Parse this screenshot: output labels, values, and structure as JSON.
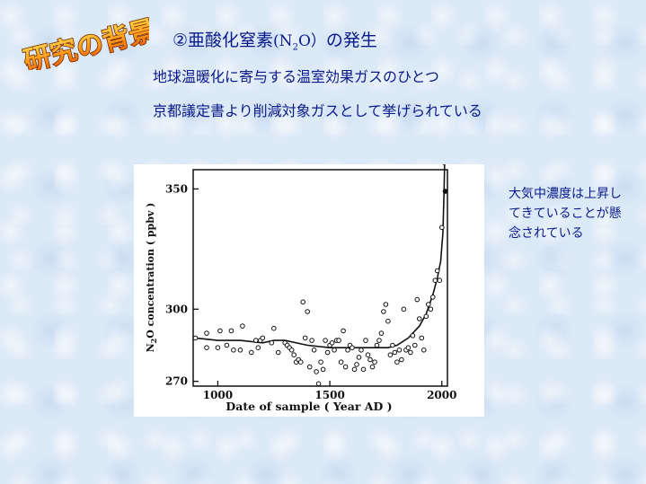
{
  "logo_text": "研究の背景",
  "title": {
    "prefix": "②亜酸化窒素",
    "formula_open": "(N",
    "formula_sub": "2",
    "formula_close": "O）",
    "suffix": "の発生"
  },
  "lines": [
    "地球温暖化に寄与する温室効果ガスのひとつ",
    "京都議定書より削減対象ガスとして挙げられている"
  ],
  "side_note": "大気中濃度は上昇してきていることが懸念されている",
  "chart_data": {
    "type": "scatter",
    "xlabel": "Date of sample ( Year AD )",
    "ylabel_main": "N",
    "ylabel_sub": "2",
    "ylabel_rest": "O concentration ( ppbv )",
    "xlim": [
      890,
      2025
    ],
    "ylim": [
      268,
      358
    ],
    "x_ticks": [
      1000,
      1500,
      2000
    ],
    "y_ticks": [
      270,
      300,
      350
    ],
    "points": [
      [
        900,
        288
      ],
      [
        950,
        290
      ],
      [
        950,
        284
      ],
      [
        1000,
        284
      ],
      [
        1010,
        291
      ],
      [
        1040,
        285
      ],
      [
        1060,
        291
      ],
      [
        1070,
        283
      ],
      [
        1100,
        283
      ],
      [
        1110,
        293
      ],
      [
        1150,
        282
      ],
      [
        1170,
        287
      ],
      [
        1180,
        284
      ],
      [
        1190,
        287
      ],
      [
        1200,
        288
      ],
      [
        1240,
        286
      ],
      [
        1250,
        292
      ],
      [
        1270,
        282
      ],
      [
        1300,
        286
      ],
      [
        1310,
        285
      ],
      [
        1320,
        284
      ],
      [
        1330,
        283
      ],
      [
        1340,
        281
      ],
      [
        1350,
        278
      ],
      [
        1360,
        279
      ],
      [
        1370,
        278
      ],
      [
        1380,
        303
      ],
      [
        1390,
        288
      ],
      [
        1400,
        299
      ],
      [
        1410,
        276
      ],
      [
        1420,
        287
      ],
      [
        1430,
        283
      ],
      [
        1440,
        274
      ],
      [
        1450,
        269
      ],
      [
        1460,
        278
      ],
      [
        1470,
        275
      ],
      [
        1480,
        287
      ],
      [
        1490,
        282
      ],
      [
        1500,
        285
      ],
      [
        1510,
        286
      ],
      [
        1520,
        283
      ],
      [
        1530,
        287
      ],
      [
        1540,
        287
      ],
      [
        1550,
        278
      ],
      [
        1560,
        291
      ],
      [
        1570,
        276
      ],
      [
        1580,
        283
      ],
      [
        1590,
        285
      ],
      [
        1600,
        284
      ],
      [
        1610,
        275
      ],
      [
        1620,
        277
      ],
      [
        1630,
        280
      ],
      [
        1640,
        283
      ],
      [
        1650,
        275
      ],
      [
        1660,
        287
      ],
      [
        1670,
        281
      ],
      [
        1680,
        279
      ],
      [
        1690,
        276
      ],
      [
        1700,
        278
      ],
      [
        1710,
        285
      ],
      [
        1720,
        287
      ],
      [
        1730,
        290
      ],
      [
        1740,
        299
      ],
      [
        1750,
        302
      ],
      [
        1760,
        295
      ],
      [
        1770,
        281
      ],
      [
        1780,
        285
      ],
      [
        1790,
        282
      ],
      [
        1800,
        278
      ],
      [
        1810,
        283
      ],
      [
        1820,
        279
      ],
      [
        1830,
        300
      ],
      [
        1840,
        283
      ],
      [
        1850,
        284
      ],
      [
        1860,
        282
      ],
      [
        1870,
        289
      ],
      [
        1880,
        285
      ],
      [
        1890,
        304
      ],
      [
        1900,
        296
      ],
      [
        1910,
        288
      ],
      [
        1920,
        283
      ],
      [
        1930,
        297
      ],
      [
        1940,
        302
      ],
      [
        1950,
        300
      ],
      [
        1960,
        305
      ],
      [
        1970,
        312
      ],
      [
        1980,
        316
      ],
      [
        1990,
        312
      ],
      [
        2000,
        334
      ],
      [
        2010,
        361
      ],
      [
        2015,
        349
      ]
    ],
    "trend": [
      [
        900,
        288
      ],
      [
        1000,
        287
      ],
      [
        1100,
        287
      ],
      [
        1200,
        286
      ],
      [
        1250,
        287
      ],
      [
        1300,
        287
      ],
      [
        1400,
        285
      ],
      [
        1500,
        284
      ],
      [
        1600,
        284
      ],
      [
        1700,
        284
      ],
      [
        1760,
        284
      ],
      [
        1800,
        285
      ],
      [
        1850,
        288
      ],
      [
        1900,
        293
      ],
      [
        1930,
        298
      ],
      [
        1960,
        306
      ],
      [
        1980,
        313
      ],
      [
        1995,
        320
      ],
      [
        2005,
        332
      ],
      [
        2010,
        350
      ],
      [
        2012,
        360
      ]
    ]
  }
}
